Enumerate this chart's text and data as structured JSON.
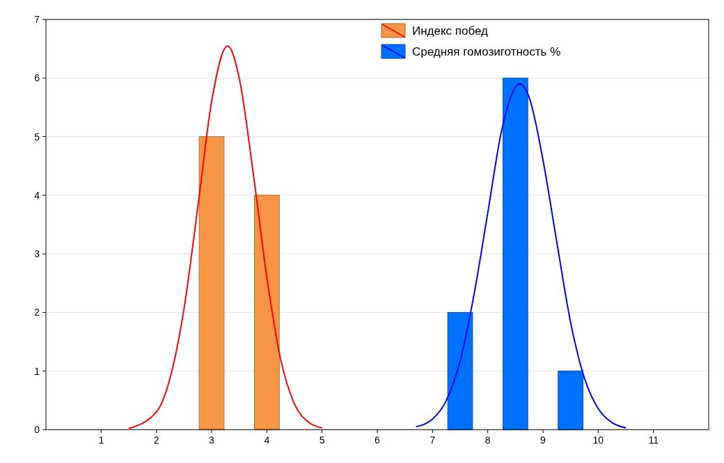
{
  "chart_data": {
    "type": "bar",
    "xlim": [
      0,
      12
    ],
    "xticks": [
      1,
      2,
      3,
      4,
      5,
      6,
      7,
      8,
      9,
      10,
      11
    ],
    "ylim": [
      0,
      7
    ],
    "yticks": [
      0,
      1,
      2,
      3,
      4,
      5,
      6,
      7
    ],
    "grid": "y",
    "legend": "top right",
    "series": [
      {
        "name": "Индекс побед",
        "color": "#f79646",
        "x": [
          3,
          4
        ],
        "values": [
          5,
          4
        ]
      },
      {
        "type": "line",
        "color": "#ff0000",
        "x": [
          1.5,
          2,
          2.25,
          2.5,
          2.75,
          3,
          3.29,
          3.5,
          3.75,
          4,
          4.25,
          4.5,
          4.75,
          5
        ],
        "values": [
          0.02,
          0.3,
          0.89,
          2.06,
          3.8,
          5.6,
          6.55,
          6,
          4.4,
          2.6,
          1.2,
          0.44,
          0.13,
          0.03
        ]
      },
      {
        "name": "Средняя гомозиготность %",
        "color": "#0070ff",
        "x": [
          7.5,
          8.5,
          9.5
        ],
        "values": [
          2,
          6,
          1
        ]
      },
      {
        "type": "line",
        "color": "#0000ff",
        "x": [
          6.7,
          7,
          7.25,
          7.5,
          7.75,
          8,
          8.25,
          8.58,
          8.75,
          9,
          9.25,
          9.5,
          9.75,
          10,
          10.25,
          10.5
        ],
        "values": [
          0.05,
          0.18,
          0.5,
          1.17,
          2.3,
          3.7,
          5.1,
          5.9,
          5.67,
          4.6,
          3.2,
          1.83,
          0.88,
          0.36,
          0.12,
          0.03
        ]
      }
    ]
  }
}
